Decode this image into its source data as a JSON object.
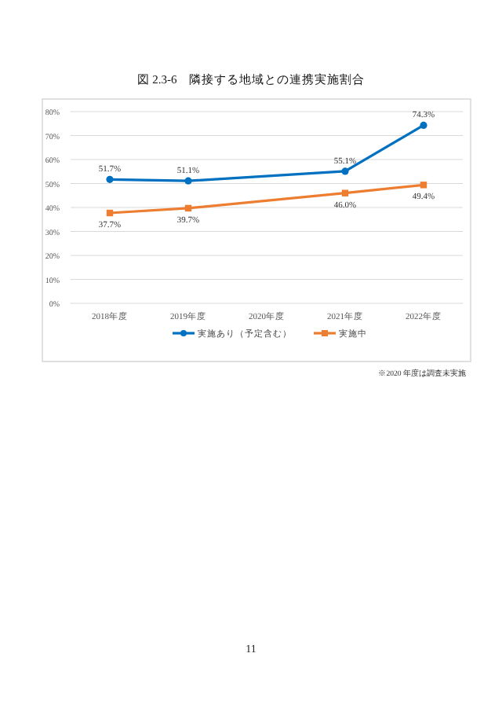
{
  "chart_data": {
    "type": "line",
    "title": "図 2.3-6　隣接する地域との連携実施割合",
    "categories": [
      "2018年度",
      "2019年度",
      "2020年度",
      "2021年度",
      "2022年度"
    ],
    "series": [
      {
        "name": "実施あり（予定含む）",
        "color": "#0070c0",
        "marker": "circle",
        "values": [
          51.7,
          51.1,
          null,
          55.1,
          74.3
        ],
        "value_labels": [
          "51.7%",
          "51.1%",
          null,
          "55.1%",
          "74.3%"
        ]
      },
      {
        "name": "実施中",
        "color": "#ed7d31",
        "marker": "square",
        "values": [
          37.7,
          39.7,
          null,
          46.0,
          49.4
        ],
        "value_labels": [
          "37.7%",
          "39.7%",
          null,
          "46.0%",
          "49.4%"
        ]
      }
    ],
    "ylim": [
      0,
      80
    ],
    "yticks": [
      {
        "value": 0,
        "label": "0%"
      },
      {
        "value": 10,
        "label": "10%"
      },
      {
        "value": 20,
        "label": "20%"
      },
      {
        "value": 30,
        "label": "30%"
      },
      {
        "value": 40,
        "label": "40%"
      },
      {
        "value": 50,
        "label": "50%"
      },
      {
        "value": 60,
        "label": "60%"
      },
      {
        "value": 70,
        "label": "70%"
      },
      {
        "value": 80,
        "label": "80%"
      }
    ],
    "grid": "y",
    "legend": "bottom",
    "line_style": "solid",
    "annotations": [
      "※2020 年度は調査未実施",
      "11"
    ]
  }
}
